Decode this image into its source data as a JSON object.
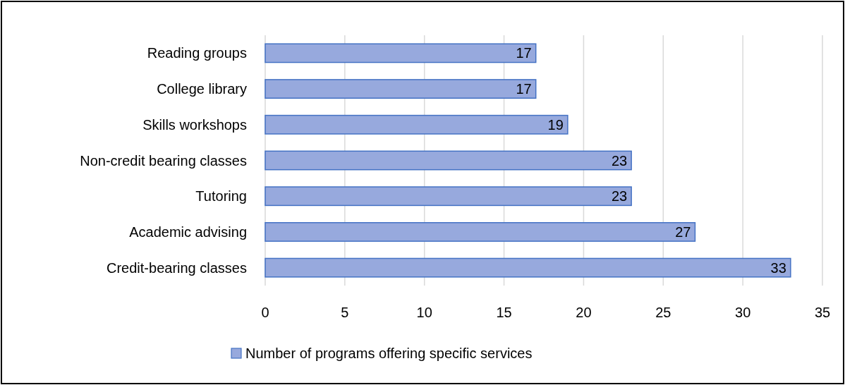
{
  "chart_data": {
    "type": "bar",
    "orientation": "horizontal",
    "categories": [
      "Reading groups",
      "College library",
      "Skills workshops",
      "Non-credit bearing classes",
      "Tutoring",
      "Academic advising",
      "Credit-bearing classes"
    ],
    "series": [
      {
        "name": "Number of programs offering specific services",
        "color": "#97a9dd",
        "values": [
          17,
          17,
          19,
          23,
          23,
          27,
          33
        ]
      }
    ],
    "xlim": [
      0,
      35
    ],
    "xticks": [
      0,
      5,
      10,
      15,
      20,
      25,
      30,
      35
    ],
    "grid": "x",
    "legend": "bottom",
    "data_labels": true
  }
}
